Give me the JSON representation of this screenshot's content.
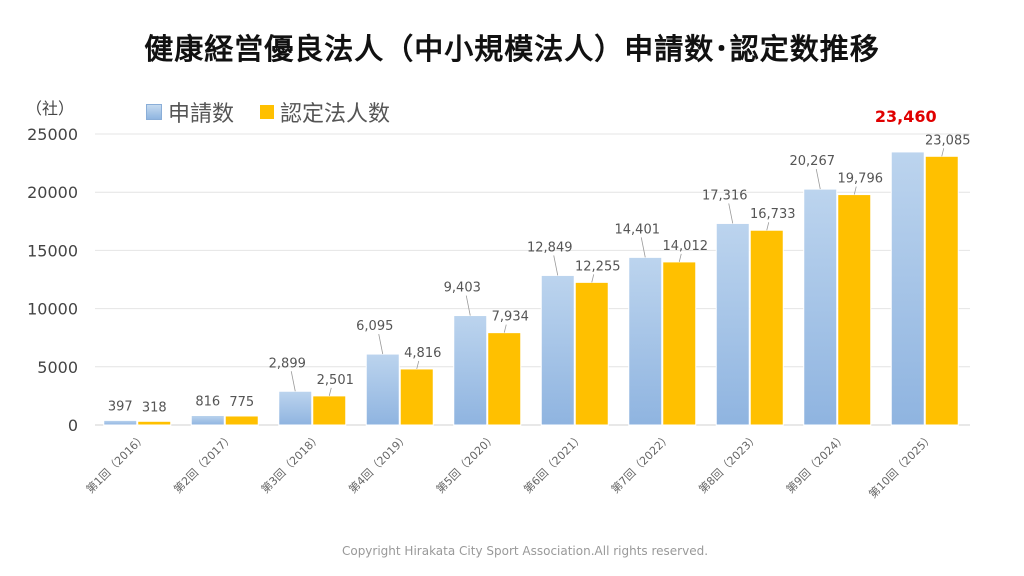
{
  "chart_data": {
    "type": "bar",
    "title": "健康経営優良法人（中小規模法人）申請数･認定数推移",
    "ylabel": "（社）",
    "xlabel": "",
    "ylim": [
      0,
      25000
    ],
    "yticks": [
      "0",
      "5000",
      "10000",
      "15000",
      "20000",
      "25000"
    ],
    "grid": true,
    "legend_position": "top-left",
    "categories": [
      "第1回（2016）",
      "第2回（2017）",
      "第3回（2018）",
      "第4回（2019）",
      "第5回（2020）",
      "第6回（2021）",
      "第7回（2022）",
      "第8回（2023）",
      "第9回（2024）",
      "第10回（2025）"
    ],
    "series": [
      {
        "name": "申請数",
        "color": "#9dc3e6",
        "values": [
          397,
          816,
          2899,
          6095,
          9403,
          12849,
          14401,
          17316,
          20267,
          23460
        ],
        "labels": [
          "397",
          "816",
          "2,899",
          "6,095",
          "9,403",
          "12,849",
          "14,401",
          "17,316",
          "20,267",
          "23,460"
        ]
      },
      {
        "name": "認定法人数",
        "color": "#ffc000",
        "values": [
          318,
          775,
          2501,
          4816,
          7934,
          12255,
          14012,
          16733,
          19796,
          23085
        ],
        "labels": [
          "318",
          "775",
          "2,501",
          "4,816",
          "7,934",
          "12,255",
          "14,012",
          "16,733",
          "19,796",
          "23,085"
        ]
      }
    ],
    "highlight_color": "#e00000"
  },
  "footer": "Copyright Hirakata City Sport Association.All rights reserved."
}
